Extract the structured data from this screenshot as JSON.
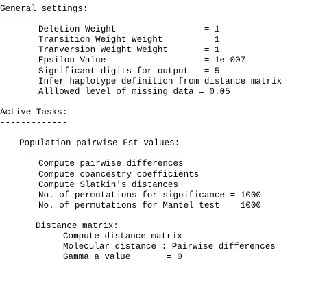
{
  "general": {
    "heading": "General settings:",
    "underline": "-----------------",
    "lines": [
      "Deletion Weight                 = 1",
      "Transition Weight Weight        = 1",
      "Tranversion Weight Weight       = 1",
      "Epsilon Value                   = 1e-007",
      "Significant digits for output   = 5",
      "Infer haplotype definition from distance matrix",
      "Alllowed level of missing data = 0.05"
    ]
  },
  "tasks": {
    "heading": "Active Tasks:",
    "underline": "-------------",
    "fst": {
      "heading": "Population pairwise Fst values:",
      "underline": "--------------------------------",
      "lines": [
        "Compute pairwise differences",
        "Compute coancestry coefficients",
        "Compute Slatkin's distances",
        "No. of permutations for significance = 1000",
        "No. of permutations for Mantel test  = 1000"
      ]
    },
    "distance": {
      "heading": "Distance matrix:",
      "lines": [
        "Compute distance matrix",
        "Molecular distance : Pairwise differences",
        "Gamma a value       = 0"
      ]
    }
  }
}
